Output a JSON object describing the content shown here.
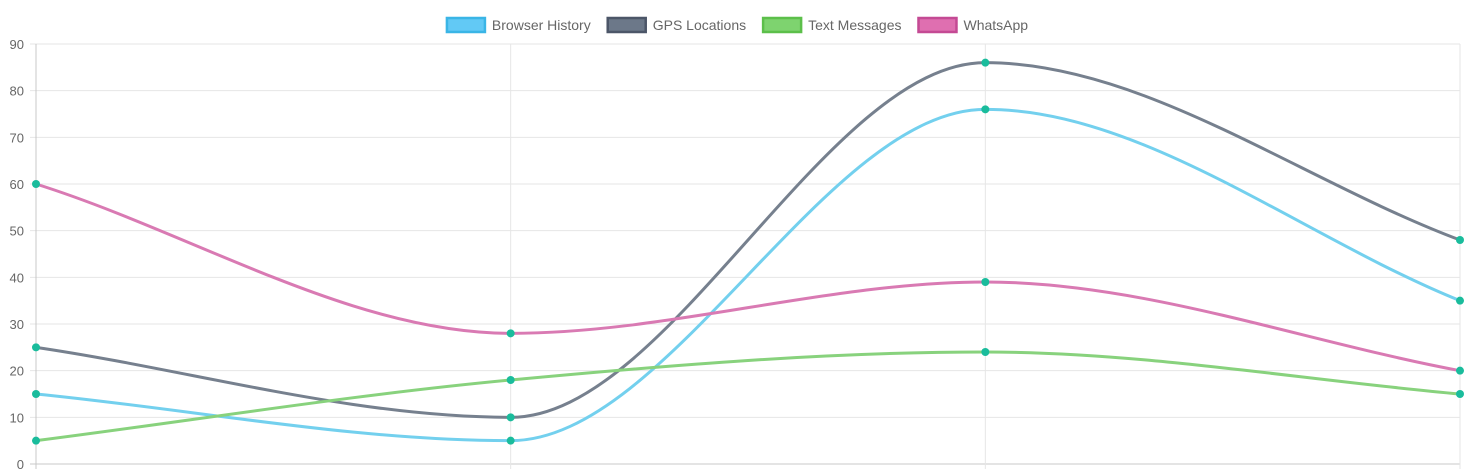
{
  "chart_data": {
    "type": "line",
    "title": "",
    "xlabel": "",
    "ylabel": "",
    "x": [
      "",
      "",
      "",
      ""
    ],
    "ylim": [
      0,
      90
    ],
    "y_ticks": [
      "0",
      "10",
      "20",
      "30",
      "40",
      "50",
      "60",
      "70",
      "80",
      "90"
    ],
    "grid": true,
    "legend_position": "top-center",
    "point_color": "#1abc9c",
    "series": [
      {
        "name": "Browser History",
        "color": "#73d0ee",
        "legend_fill": "#62c9f5",
        "legend_border": "#3ab5e6",
        "values": [
          15,
          5,
          76,
          35
        ]
      },
      {
        "name": "GPS Locations",
        "color": "#76808e",
        "legend_fill": "#6c7889",
        "legend_border": "#4c5668",
        "values": [
          25,
          10,
          86,
          48
        ]
      },
      {
        "name": "Text Messages",
        "color": "#88d27d",
        "legend_fill": "#7ed36f",
        "legend_border": "#5cbf4a",
        "values": [
          5,
          18,
          24,
          15
        ]
      },
      {
        "name": "WhatsApp",
        "color": "#d97ab3",
        "legend_fill": "#df6fb0",
        "legend_border": "#c44a94",
        "values": [
          60,
          28,
          39,
          20
        ]
      }
    ]
  }
}
